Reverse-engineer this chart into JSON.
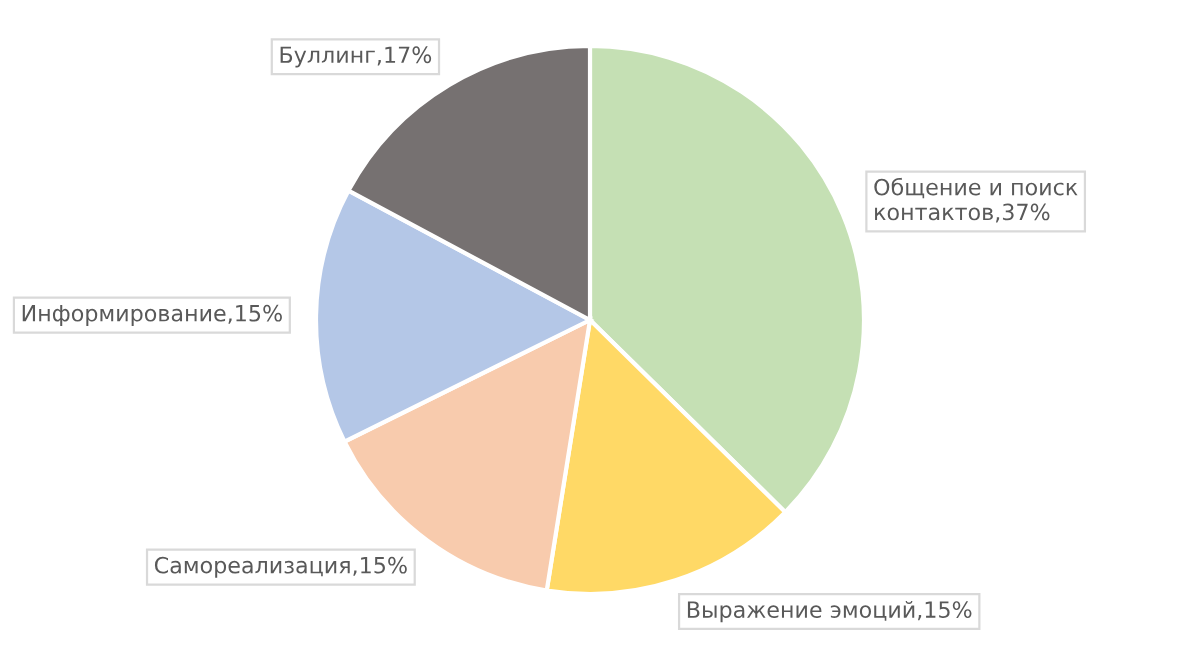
{
  "chart_data": {
    "type": "pie",
    "categories": [
      "Общение и поиск контактов",
      "Выражение эмоций",
      "Самореализация",
      "Информирование",
      "Буллинг"
    ],
    "values": [
      37,
      15,
      15,
      15,
      17
    ],
    "value_labels": [
      "37%",
      "15%",
      "15%",
      "15%",
      "17%"
    ],
    "colors": [
      "#c5e0b4",
      "#ffd966",
      "#f8cbad",
      "#b4c7e7",
      "#767171"
    ],
    "legend": false
  }
}
